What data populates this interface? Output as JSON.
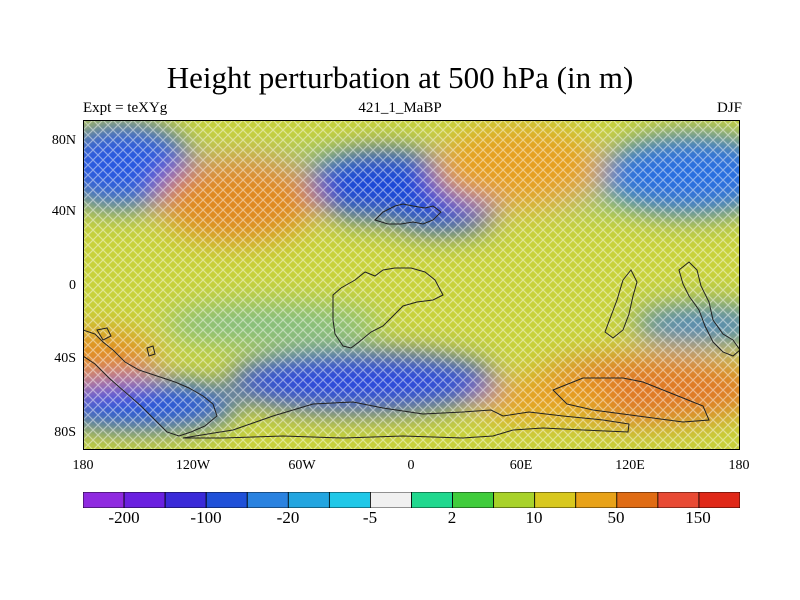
{
  "title": "Height perturbation at 500 hPa (in m)",
  "subtitle_left": "Expt = teXYg",
  "subtitle_center": "421_1_MaBP",
  "subtitle_right": "DJF",
  "axes": {
    "y_ticks": [
      "80N",
      "40N",
      "0",
      "40S",
      "80S"
    ],
    "x_ticks": [
      "180",
      "120W",
      "60W",
      "0",
      "60E",
      "120E",
      "180"
    ]
  },
  "colorbar": {
    "colors": [
      "#8f2ae0",
      "#6a20e0",
      "#3a2ad8",
      "#1f50d8",
      "#2a82e0",
      "#22a5e0",
      "#20c8e8",
      "#f0f0f0",
      "#20d88e",
      "#40cc3c",
      "#a8d22a",
      "#d8c81e",
      "#e8a218",
      "#e06c14",
      "#e84a34",
      "#e02818"
    ],
    "labels": [
      "-200",
      "-100",
      "-20",
      "-5",
      "2",
      "10",
      "50",
      "150"
    ]
  },
  "field": {
    "background": "#c8d23c",
    "blue_blobs": [
      {
        "name": "north-pacific-low",
        "color": "#2a5ae0"
      },
      {
        "name": "north-atlantic-low",
        "color": "#1e48d8"
      },
      {
        "name": "siberian-low",
        "color": "#2a70e0"
      },
      {
        "name": "southern-ocean-low-west",
        "color": "#2252e0"
      },
      {
        "name": "southern-ocean-low-atlantic",
        "color": "#2a4ade"
      }
    ],
    "orange_blobs": [
      {
        "name": "north-america-ridge",
        "color": "#e08a22"
      },
      {
        "name": "eurasia-ridge",
        "color": "#e6a024"
      },
      {
        "name": "south-pacific-ridge",
        "color": "#e28c22"
      },
      {
        "name": "australia-ridge",
        "color": "#e07a26"
      }
    ]
  }
}
